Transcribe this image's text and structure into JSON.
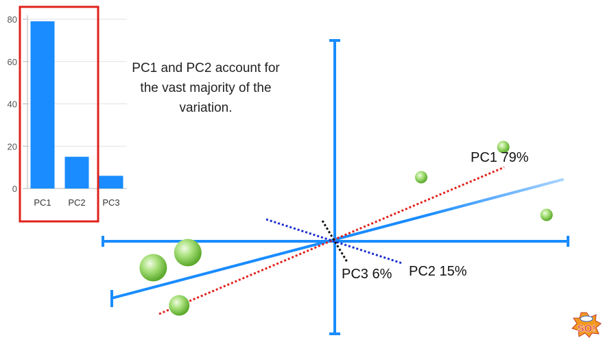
{
  "chart_data": [
    {
      "type": "bar",
      "categories": [
        "PC1",
        "PC2",
        "PC3"
      ],
      "values": [
        79,
        15,
        6
      ],
      "ylim": [
        0,
        80
      ],
      "yticks": [
        0,
        20,
        40,
        60,
        80
      ],
      "grid": true,
      "bar_color": "#1a8cff",
      "highlight": {
        "categories": [
          "PC1",
          "PC2"
        ],
        "color": "#e0201b"
      }
    },
    {
      "type": "scatter",
      "points": [
        {
          "x": -4.2,
          "y": -0.7,
          "size": "large"
        },
        {
          "x": -3.4,
          "y": -0.3,
          "size": "large"
        },
        {
          "x": -3.6,
          "y": -1.7,
          "size": "medium"
        },
        {
          "x": 2.0,
          "y": 1.7,
          "size": "small"
        },
        {
          "x": 3.9,
          "y": 2.5,
          "size": "small"
        },
        {
          "x": 4.9,
          "y": 0.7,
          "size": "small"
        }
      ],
      "axes_color": "#1a8cff",
      "point_color": "#7acb3c",
      "components": [
        {
          "name": "PC1",
          "label": "PC1 79%",
          "color": "#e0201b",
          "style": "dotted"
        },
        {
          "name": "PC2",
          "label": "PC2 15%",
          "color": "#1a2ecc",
          "style": "dotted"
        },
        {
          "name": "PC3",
          "label": "PC3 6%",
          "color": "#111111",
          "style": "dotted"
        }
      ]
    }
  ],
  "annotation": [
    "PC1 and PC2 account for",
    "the vast majority of the",
    "variation."
  ],
  "colors": {
    "accent": "#1a8cff",
    "highlight": "#e0201b",
    "points": "#7acb3c"
  },
  "logo": {
    "icon": "so-badge-icon",
    "text": "SO!"
  }
}
